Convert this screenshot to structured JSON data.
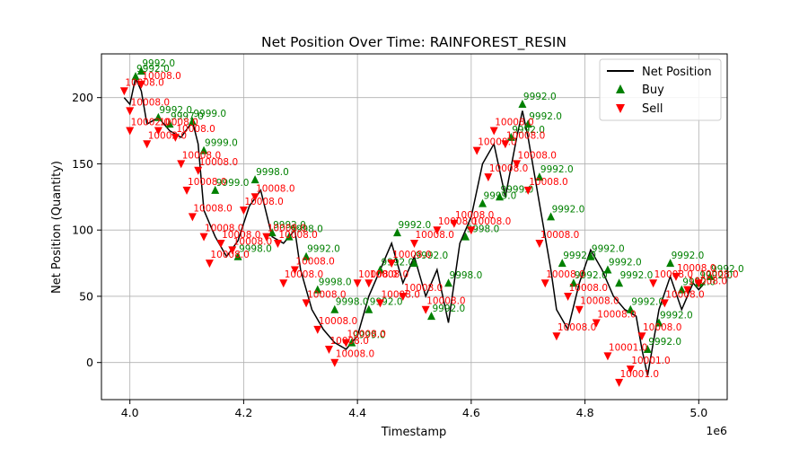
{
  "chart_data": {
    "type": "line",
    "title": "Net Position Over Time: RAINFOREST_RESIN",
    "xlabel": "Timestamp",
    "ylabel": "Net Position (Quantity)",
    "x_offset_label": "1e6",
    "xlim": [
      3.95,
      5.05
    ],
    "ylim": [
      -28,
      233
    ],
    "x_ticks": [
      4.0,
      4.2,
      4.4,
      4.6,
      4.8,
      5.0
    ],
    "x_tick_labels": [
      "4.0",
      "4.2",
      "4.4",
      "4.6",
      "4.8",
      "5.0"
    ],
    "y_ticks": [
      0,
      50,
      100,
      150,
      200
    ],
    "y_tick_labels": [
      "0",
      "50",
      "100",
      "150",
      "200"
    ],
    "grid": true,
    "legend_position": "top-right",
    "legend": [
      "Net Position",
      "Buy",
      "Sell"
    ],
    "series": [
      {
        "name": "Net Position",
        "color": "#000000",
        "x": [
          3.99,
          4.0,
          4.01,
          4.02,
          4.03,
          4.05,
          4.07,
          4.09,
          4.11,
          4.12,
          4.13,
          4.15,
          4.17,
          4.19,
          4.21,
          4.23,
          4.25,
          4.27,
          4.29,
          4.3,
          4.32,
          4.34,
          4.36,
          4.38,
          4.4,
          4.42,
          4.44,
          4.46,
          4.48,
          4.5,
          4.52,
          4.54,
          4.56,
          4.58,
          4.6,
          4.62,
          4.64,
          4.66,
          4.68,
          4.69,
          4.7,
          4.72,
          4.74,
          4.75,
          4.77,
          4.79,
          4.81,
          4.83,
          4.85,
          4.87,
          4.89,
          4.9,
          4.91,
          4.93,
          4.95,
          4.97,
          4.99,
          5.0,
          5.01
        ],
        "y": [
          200,
          195,
          215,
          205,
          180,
          185,
          175,
          170,
          182,
          165,
          115,
          95,
          80,
          92,
          118,
          130,
          95,
          90,
          100,
          70,
          40,
          25,
          15,
          10,
          20,
          50,
          70,
          90,
          60,
          80,
          50,
          70,
          30,
          90,
          110,
          150,
          165,
          125,
          170,
          190,
          170,
          120,
          70,
          40,
          25,
          60,
          85,
          70,
          50,
          40,
          35,
          10,
          -10,
          40,
          65,
          40,
          60,
          55,
          60
        ]
      }
    ],
    "markers": [
      {
        "name": "Buy",
        "color": "#008000",
        "symbol": "triangle-up",
        "points": [
          {
            "x": 4.01,
            "y": 216,
            "label": "9992.0"
          },
          {
            "x": 4.02,
            "y": 220,
            "label": "9992.0"
          },
          {
            "x": 4.05,
            "y": 185,
            "label": "9992.0"
          },
          {
            "x": 4.07,
            "y": 180,
            "label": "9997.0"
          },
          {
            "x": 4.11,
            "y": 182,
            "label": "9999.0"
          },
          {
            "x": 4.13,
            "y": 160,
            "label": "9999.0"
          },
          {
            "x": 4.15,
            "y": 130,
            "label": "9999.0"
          },
          {
            "x": 4.19,
            "y": 80,
            "label": "9998.0"
          },
          {
            "x": 4.22,
            "y": 138,
            "label": "9998.0"
          },
          {
            "x": 4.25,
            "y": 98,
            "label": "9992.0"
          },
          {
            "x": 4.28,
            "y": 95,
            "label": "9998.0"
          },
          {
            "x": 4.31,
            "y": 80,
            "label": "9992.0"
          },
          {
            "x": 4.33,
            "y": 55,
            "label": "9998.0"
          },
          {
            "x": 4.36,
            "y": 40,
            "label": "9998.0"
          },
          {
            "x": 4.39,
            "y": 15,
            "label": "9999.0"
          },
          {
            "x": 4.42,
            "y": 40,
            "label": "9992.0"
          },
          {
            "x": 4.44,
            "y": 70,
            "label": "9992.0"
          },
          {
            "x": 4.47,
            "y": 98,
            "label": "9992.0"
          },
          {
            "x": 4.5,
            "y": 75,
            "label": "9992.0"
          },
          {
            "x": 4.53,
            "y": 35,
            "label": "9992.0"
          },
          {
            "x": 4.56,
            "y": 60,
            "label": "9998.0"
          },
          {
            "x": 4.59,
            "y": 95,
            "label": "9998.0"
          },
          {
            "x": 4.62,
            "y": 120,
            "label": "9999.0"
          },
          {
            "x": 4.65,
            "y": 125,
            "label": "9999.0"
          },
          {
            "x": 4.67,
            "y": 170,
            "label": "9992.0"
          },
          {
            "x": 4.69,
            "y": 195,
            "label": "9992.0"
          },
          {
            "x": 4.7,
            "y": 180,
            "label": "9992.0"
          },
          {
            "x": 4.72,
            "y": 140,
            "label": "9992.0"
          },
          {
            "x": 4.74,
            "y": 110,
            "label": "9992.0"
          },
          {
            "x": 4.76,
            "y": 75,
            "label": "9992.0"
          },
          {
            "x": 4.78,
            "y": 60,
            "label": "9992.0"
          },
          {
            "x": 4.81,
            "y": 80,
            "label": "9992.0"
          },
          {
            "x": 4.84,
            "y": 70,
            "label": "9992.0"
          },
          {
            "x": 4.86,
            "y": 60,
            "label": "9992.0"
          },
          {
            "x": 4.88,
            "y": 40,
            "label": "9992.0"
          },
          {
            "x": 4.91,
            "y": 10,
            "label": "9992.0"
          },
          {
            "x": 4.93,
            "y": 30,
            "label": "9992.0"
          },
          {
            "x": 4.95,
            "y": 75,
            "label": "9992.0"
          },
          {
            "x": 4.97,
            "y": 55,
            "label": "9992.0"
          },
          {
            "x": 5.0,
            "y": 60,
            "label": "9992.0"
          },
          {
            "x": 5.02,
            "y": 65,
            "label": "9992.0"
          }
        ]
      },
      {
        "name": "Sell",
        "color": "#ff0000",
        "symbol": "triangle-down",
        "points": [
          {
            "x": 3.99,
            "y": 205,
            "label": "10008.0"
          },
          {
            "x": 4.0,
            "y": 190,
            "label": "10008.0"
          },
          {
            "x": 4.0,
            "y": 175,
            "label": "10002.0"
          },
          {
            "x": 4.02,
            "y": 210,
            "label": "10008.0"
          },
          {
            "x": 4.03,
            "y": 165,
            "label": "10002.0"
          },
          {
            "x": 4.05,
            "y": 175,
            "label": "10008.0"
          },
          {
            "x": 4.08,
            "y": 170,
            "label": "10008.0"
          },
          {
            "x": 4.09,
            "y": 150,
            "label": "10008.0"
          },
          {
            "x": 4.1,
            "y": 130,
            "label": "10008.0"
          },
          {
            "x": 4.11,
            "y": 110,
            "label": "10008.0"
          },
          {
            "x": 4.12,
            "y": 145,
            "label": "10008.0"
          },
          {
            "x": 4.13,
            "y": 95,
            "label": "10008.0"
          },
          {
            "x": 4.14,
            "y": 75,
            "label": "10008.0"
          },
          {
            "x": 4.16,
            "y": 90,
            "label": "10008.0"
          },
          {
            "x": 4.18,
            "y": 85,
            "label": "10008.0"
          },
          {
            "x": 4.2,
            "y": 115,
            "label": "10008.0"
          },
          {
            "x": 4.22,
            "y": 125,
            "label": "10008.0"
          },
          {
            "x": 4.24,
            "y": 95,
            "label": "10008.0"
          },
          {
            "x": 4.26,
            "y": 90,
            "label": "10008.0"
          },
          {
            "x": 4.27,
            "y": 60,
            "label": "10008.0"
          },
          {
            "x": 4.29,
            "y": 70,
            "label": "10008.0"
          },
          {
            "x": 4.31,
            "y": 45,
            "label": "10008.0"
          },
          {
            "x": 4.33,
            "y": 25,
            "label": "10008.0"
          },
          {
            "x": 4.35,
            "y": 10,
            "label": "10008.0"
          },
          {
            "x": 4.36,
            "y": 0,
            "label": "10008.0"
          },
          {
            "x": 4.38,
            "y": 15,
            "label": "10008.0"
          },
          {
            "x": 4.4,
            "y": 60,
            "label": "10008.0"
          },
          {
            "x": 4.42,
            "y": 60,
            "label": "10008.0"
          },
          {
            "x": 4.44,
            "y": 45,
            "label": "10008.0"
          },
          {
            "x": 4.46,
            "y": 75,
            "label": "10008.0"
          },
          {
            "x": 4.48,
            "y": 50,
            "label": "10008.0"
          },
          {
            "x": 4.5,
            "y": 90,
            "label": "10008.0"
          },
          {
            "x": 4.52,
            "y": 40,
            "label": "10008.0"
          },
          {
            "x": 4.54,
            "y": 100,
            "label": "10008.0"
          },
          {
            "x": 4.57,
            "y": 105,
            "label": "10008.0"
          },
          {
            "x": 4.6,
            "y": 100,
            "label": "10008.0"
          },
          {
            "x": 4.61,
            "y": 160,
            "label": "10008.0"
          },
          {
            "x": 4.63,
            "y": 140,
            "label": "10008.0"
          },
          {
            "x": 4.64,
            "y": 175,
            "label": "10008.0"
          },
          {
            "x": 4.66,
            "y": 165,
            "label": "10008.0"
          },
          {
            "x": 4.68,
            "y": 150,
            "label": "10008.0"
          },
          {
            "x": 4.7,
            "y": 130,
            "label": "10008.0"
          },
          {
            "x": 4.72,
            "y": 90,
            "label": "10008.0"
          },
          {
            "x": 4.73,
            "y": 60,
            "label": "10008.0"
          },
          {
            "x": 4.75,
            "y": 20,
            "label": "10008.0"
          },
          {
            "x": 4.77,
            "y": 50,
            "label": "10008.0"
          },
          {
            "x": 4.79,
            "y": 40,
            "label": "10008.0"
          },
          {
            "x": 4.82,
            "y": 30,
            "label": "10008.0"
          },
          {
            "x": 4.84,
            "y": 5,
            "label": "10001.0"
          },
          {
            "x": 4.86,
            "y": -15,
            "label": "10001.0"
          },
          {
            "x": 4.88,
            "y": -5,
            "label": "10001.0"
          },
          {
            "x": 4.9,
            "y": 20,
            "label": "10008.0"
          },
          {
            "x": 4.92,
            "y": 60,
            "label": "10008.0"
          },
          {
            "x": 4.94,
            "y": 45,
            "label": "10008.0"
          },
          {
            "x": 4.96,
            "y": 65,
            "label": "10008.0"
          },
          {
            "x": 4.98,
            "y": 55,
            "label": "10008.0"
          },
          {
            "x": 5.0,
            "y": 60,
            "label": "10008.0"
          }
        ]
      }
    ]
  }
}
